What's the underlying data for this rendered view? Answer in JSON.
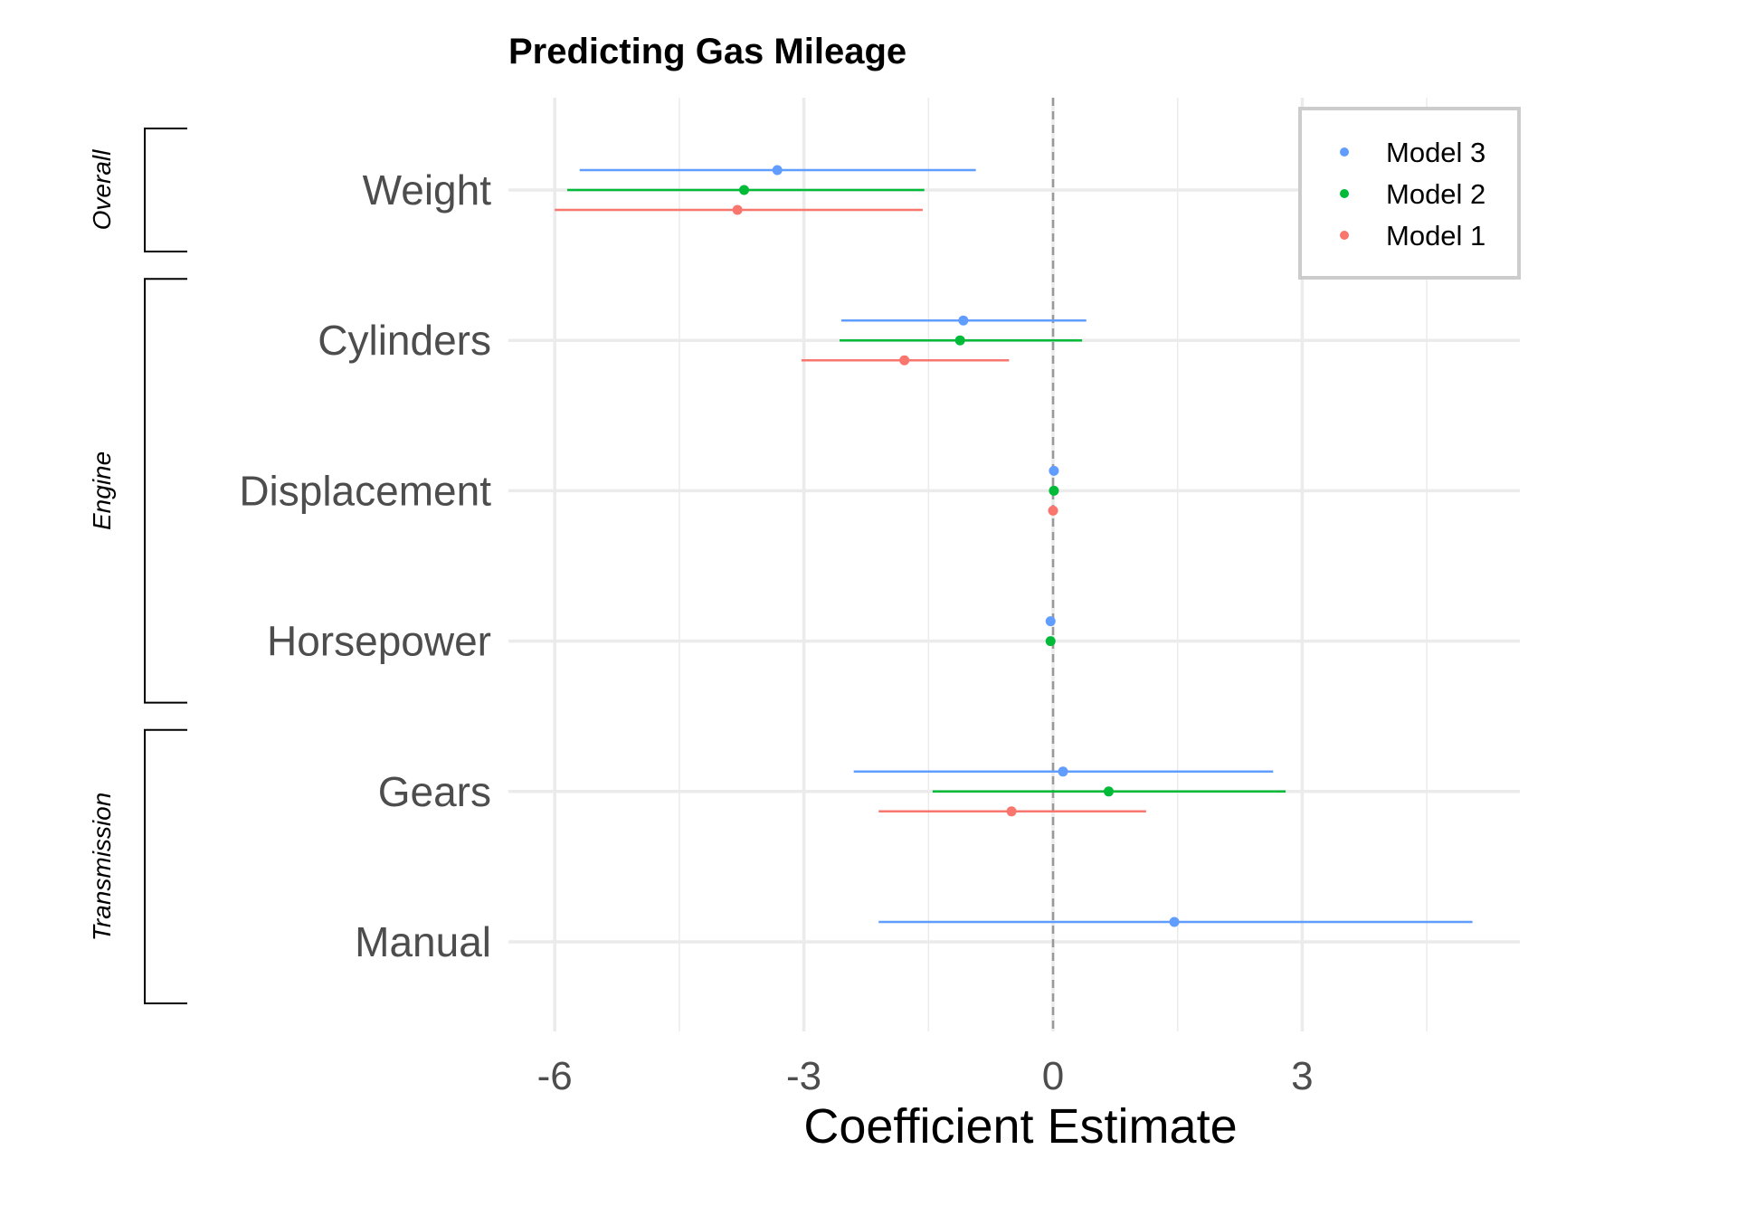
{
  "chart_data": {
    "type": "scatter",
    "title": "Predicting Gas Mileage",
    "xlabel": "Coefficient Estimate",
    "ylabel": "",
    "xlim": [
      -6.6,
      5.6
    ],
    "xticks": [
      -6,
      -3,
      0,
      3
    ],
    "x_tick_labels": [
      "-6",
      "-3",
      "0",
      "3"
    ],
    "reference_line": 0,
    "grid": true,
    "legend_position": "top-right",
    "categories": [
      "Weight",
      "Cylinders",
      "Displacement",
      "Horsepower",
      "Gears",
      "Manual"
    ],
    "groups": [
      {
        "label": "Overall",
        "categories": [
          "Weight"
        ]
      },
      {
        "label": "Engine",
        "categories": [
          "Cylinders",
          "Displacement",
          "Horsepower"
        ]
      },
      {
        "label": "Transmission",
        "categories": [
          "Gears",
          "Manual"
        ]
      }
    ],
    "series": [
      {
        "name": "Model 3",
        "color": "#619CFF",
        "estimates": [
          -3.32,
          -1.08,
          0.01,
          -0.03,
          0.12,
          1.46
        ],
        "lower": [
          -5.7,
          -2.55,
          0.01,
          -0.03,
          -2.4,
          -2.1
        ],
        "upper": [
          -0.93,
          0.4,
          0.01,
          -0.03,
          2.65,
          5.05
        ]
      },
      {
        "name": "Model 2",
        "color": "#00BA38",
        "estimates": [
          -3.72,
          -1.12,
          0.01,
          -0.03,
          0.67,
          null
        ],
        "lower": [
          -5.85,
          -2.57,
          0.01,
          -0.03,
          -1.45,
          null
        ],
        "upper": [
          -1.55,
          0.35,
          0.01,
          -0.03,
          2.8,
          null
        ]
      },
      {
        "name": "Model 1",
        "color": "#F8766D",
        "estimates": [
          -3.8,
          -1.79,
          0.0,
          null,
          -0.5,
          null
        ],
        "lower": [
          -6.0,
          -3.03,
          0.0,
          null,
          -2.1,
          null
        ],
        "upper": [
          -1.57,
          -0.53,
          0.0,
          null,
          1.12,
          null
        ]
      }
    ]
  }
}
